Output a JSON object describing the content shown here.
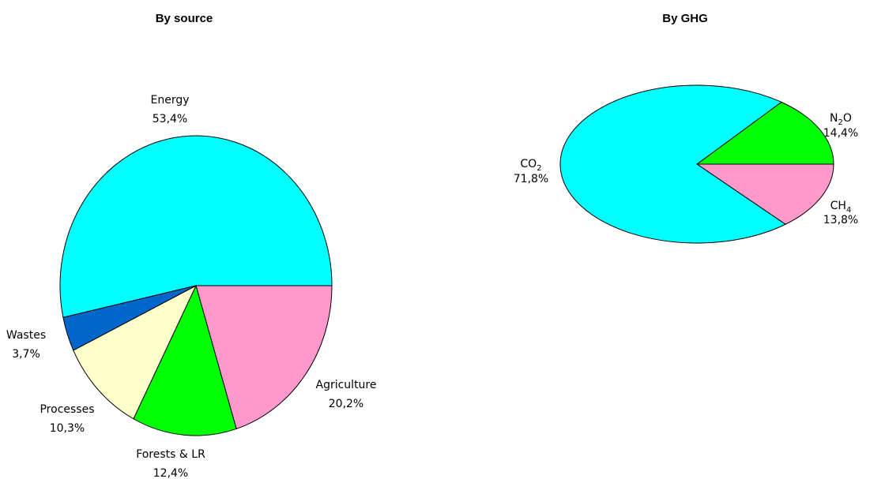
{
  "chart_data": [
    {
      "type": "pie",
      "title": "By source",
      "slices": [
        {
          "label": "Energy",
          "value": 53.4,
          "value_label": "53,4%",
          "color": "#00ffff"
        },
        {
          "label": "Agriculture",
          "value": 20.2,
          "value_label": "20,2%",
          "color": "#ff99cc"
        },
        {
          "label": "Forests & LR",
          "value": 12.4,
          "value_label": "12,4%",
          "color": "#00ff00"
        },
        {
          "label": "Processes",
          "value": 10.3,
          "value_label": "10,3%",
          "color": "#ffffcc"
        },
        {
          "label": "Wastes",
          "value": 3.7,
          "value_label": "3,7%",
          "color": "#0066cc"
        }
      ]
    },
    {
      "type": "pie",
      "title": "By GHG",
      "slices": [
        {
          "label_main": "N",
          "label_sub": "2",
          "label_tail": "O",
          "value": 14.4,
          "value_label": "14,4%",
          "color": "#00ff00"
        },
        {
          "label_main": "CH",
          "label_sub": "4",
          "label_tail": "",
          "value": 13.8,
          "value_label": "13,8%",
          "color": "#ff99cc"
        },
        {
          "label_main": "CO",
          "label_sub": "2",
          "label_tail": "",
          "value": 71.8,
          "value_label": "71,8%",
          "color": "#00ffff"
        }
      ]
    }
  ]
}
